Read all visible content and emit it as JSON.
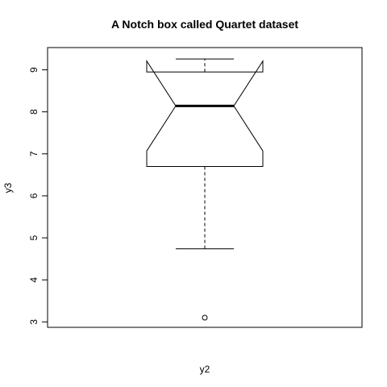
{
  "chart_data": {
    "type": "box",
    "notched": true,
    "title": "A Notch box called Quartet dataset",
    "xlabel": "y2",
    "ylabel": "y3",
    "ylim": [
      2.87,
      9.53
    ],
    "yticks": [
      3,
      4,
      5,
      6,
      7,
      8,
      9
    ],
    "grid": false,
    "box": {
      "lower_whisker": 4.74,
      "q1": 6.7,
      "median": 8.14,
      "q3": 8.95,
      "upper_whisker": 9.26,
      "notch_lower": 7.07,
      "notch_upper": 9.21,
      "outliers": [
        3.1
      ]
    }
  }
}
